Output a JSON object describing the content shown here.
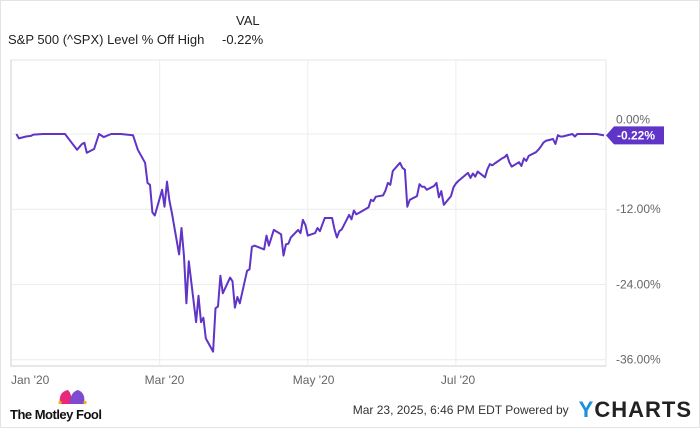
{
  "header": {
    "column_label": "VAL",
    "series_label": "S&P 500 (^SPX) Level % Off High",
    "series_value": "-0.22%"
  },
  "chart_data": {
    "type": "line",
    "title": "",
    "xlabel": "",
    "ylabel": "",
    "x_ticks": [
      {
        "date": "2020-01-01",
        "label": "Jan '20"
      },
      {
        "date": "2020-03-01",
        "label": "Mar '20"
      },
      {
        "date": "2020-05-01",
        "label": "May '20"
      },
      {
        "date": "2020-07-01",
        "label": "Jul '20"
      }
    ],
    "y_ticks": [
      {
        "value": 0,
        "label": "0.00%"
      },
      {
        "value": -12,
        "label": "-12.00%"
      },
      {
        "value": -24,
        "label": "-24.00%"
      },
      {
        "value": -36,
        "label": "-36.00%"
      }
    ],
    "xlim": [
      "2020-01-01",
      "2020-08-31"
    ],
    "ylim": [
      -37,
      11.8
    ],
    "grid": true,
    "line_color": "#5f34c7",
    "last_value_label": "-0.22%",
    "series": [
      {
        "points": [
          [
            "2020-01-02",
            0
          ],
          [
            "2020-01-03",
            -0.7
          ],
          [
            "2020-01-06",
            -0.4
          ],
          [
            "2020-01-08",
            -0.3
          ],
          [
            "2020-01-09",
            -0.1
          ],
          [
            "2020-01-13",
            0
          ],
          [
            "2020-01-17",
            0
          ],
          [
            "2020-01-22",
            0
          ],
          [
            "2020-01-24",
            -1.0
          ],
          [
            "2020-01-27",
            -2.5
          ],
          [
            "2020-01-29",
            -1.6
          ],
          [
            "2020-01-30",
            -1.4
          ],
          [
            "2020-01-31",
            -3.0
          ],
          [
            "2020-02-03",
            -2.4
          ],
          [
            "2020-02-05",
            0
          ],
          [
            "2020-02-07",
            -0.5
          ],
          [
            "2020-02-10",
            0
          ],
          [
            "2020-02-12",
            0
          ],
          [
            "2020-02-14",
            0
          ],
          [
            "2020-02-19",
            -0.2
          ],
          [
            "2020-02-21",
            -2.5
          ],
          [
            "2020-02-24",
            -4.6
          ],
          [
            "2020-02-25",
            -7.8
          ],
          [
            "2020-02-26",
            -8.1
          ],
          [
            "2020-02-27",
            -12.5
          ],
          [
            "2020-02-28",
            -13.0
          ],
          [
            "2020-03-02",
            -8.9
          ],
          [
            "2020-03-03",
            -11.6
          ],
          [
            "2020-03-04",
            -7.6
          ],
          [
            "2020-03-05",
            -10.6
          ],
          [
            "2020-03-06",
            -12.5
          ],
          [
            "2020-03-09",
            -19.2
          ],
          [
            "2020-03-10",
            -15.0
          ],
          [
            "2020-03-11",
            -19.5
          ],
          [
            "2020-03-12",
            -27.0
          ],
          [
            "2020-03-13",
            -20.3
          ],
          [
            "2020-03-16",
            -30.0
          ],
          [
            "2020-03-17",
            -25.8
          ],
          [
            "2020-03-18",
            -30.0
          ],
          [
            "2020-03-19",
            -29.3
          ],
          [
            "2020-03-20",
            -32.6
          ],
          [
            "2020-03-23",
            -34.7
          ],
          [
            "2020-03-24",
            -27.8
          ],
          [
            "2020-03-25",
            -27.5
          ],
          [
            "2020-03-26",
            -22.6
          ],
          [
            "2020-03-27",
            -25.4
          ],
          [
            "2020-03-30",
            -22.9
          ],
          [
            "2020-03-31",
            -23.5
          ],
          [
            "2020-04-01",
            -27.7
          ],
          [
            "2020-04-02",
            -26.0
          ],
          [
            "2020-04-03",
            -27.0
          ],
          [
            "2020-04-06",
            -21.8
          ],
          [
            "2020-04-07",
            -21.6
          ],
          [
            "2020-04-08",
            -18.0
          ],
          [
            "2020-04-09",
            -17.8
          ],
          [
            "2020-04-13",
            -18.4
          ],
          [
            "2020-04-14",
            -16.2
          ],
          [
            "2020-04-15",
            -17.8
          ],
          [
            "2020-04-17",
            -15.3
          ],
          [
            "2020-04-20",
            -16.0
          ],
          [
            "2020-04-21",
            -19.4
          ],
          [
            "2020-04-22",
            -17.6
          ],
          [
            "2020-04-23",
            -17.5
          ],
          [
            "2020-04-24",
            -16.5
          ],
          [
            "2020-04-27",
            -15.3
          ],
          [
            "2020-04-28",
            -15.8
          ],
          [
            "2020-04-29",
            -13.7
          ],
          [
            "2020-04-30",
            -14.5
          ],
          [
            "2020-05-01",
            -16.2
          ],
          [
            "2020-05-04",
            -15.8
          ],
          [
            "2020-05-05",
            -15.0
          ],
          [
            "2020-05-06",
            -15.5
          ],
          [
            "2020-05-07",
            -14.4
          ],
          [
            "2020-05-08",
            -13.4
          ],
          [
            "2020-05-11",
            -13.4
          ],
          [
            "2020-05-12",
            -15.2
          ],
          [
            "2020-05-13",
            -16.5
          ],
          [
            "2020-05-14",
            -15.5
          ],
          [
            "2020-05-15",
            -15.2
          ],
          [
            "2020-05-18",
            -12.9
          ],
          [
            "2020-05-19",
            -13.6
          ],
          [
            "2020-05-20",
            -12.2
          ],
          [
            "2020-05-21",
            -12.8
          ],
          [
            "2020-05-22",
            -12.6
          ],
          [
            "2020-05-26",
            -11.7
          ],
          [
            "2020-05-27",
            -10.5
          ],
          [
            "2020-05-28",
            -10.7
          ],
          [
            "2020-05-29",
            -10.0
          ],
          [
            "2020-06-01",
            -9.8
          ],
          [
            "2020-06-02",
            -9.0
          ],
          [
            "2020-06-03",
            -7.8
          ],
          [
            "2020-06-04",
            -8.1
          ],
          [
            "2020-06-05",
            -5.9
          ],
          [
            "2020-06-08",
            -4.6
          ],
          [
            "2020-06-09",
            -5.4
          ],
          [
            "2020-06-10",
            -5.7
          ],
          [
            "2020-06-11",
            -11.6
          ],
          [
            "2020-06-12",
            -10.5
          ],
          [
            "2020-06-15",
            -9.9
          ],
          [
            "2020-06-16",
            -8.0
          ],
          [
            "2020-06-17",
            -8.4
          ],
          [
            "2020-06-18",
            -8.4
          ],
          [
            "2020-06-19",
            -8.9
          ],
          [
            "2020-06-22",
            -8.3
          ],
          [
            "2020-06-23",
            -7.8
          ],
          [
            "2020-06-24",
            -10.1
          ],
          [
            "2020-06-25",
            -9.1
          ],
          [
            "2020-06-26",
            -11.3
          ],
          [
            "2020-06-29",
            -9.9
          ],
          [
            "2020-06-30",
            -8.5
          ],
          [
            "2020-07-01",
            -7.9
          ],
          [
            "2020-07-02",
            -7.5
          ],
          [
            "2020-07-06",
            -6.2
          ],
          [
            "2020-07-07",
            -7.0
          ],
          [
            "2020-07-08",
            -6.3
          ],
          [
            "2020-07-09",
            -6.8
          ],
          [
            "2020-07-10",
            -6.0
          ],
          [
            "2020-07-13",
            -6.9
          ],
          [
            "2020-07-14",
            -5.6
          ],
          [
            "2020-07-15",
            -4.8
          ],
          [
            "2020-07-16",
            -5.0
          ],
          [
            "2020-07-17",
            -4.7
          ],
          [
            "2020-07-20",
            -3.9
          ],
          [
            "2020-07-21",
            -3.7
          ],
          [
            "2020-07-22",
            -3.3
          ],
          [
            "2020-07-23",
            -4.5
          ],
          [
            "2020-07-24",
            -5.2
          ],
          [
            "2020-07-27",
            -4.5
          ],
          [
            "2020-07-28",
            -5.1
          ],
          [
            "2020-07-29",
            -3.9
          ],
          [
            "2020-07-30",
            -4.3
          ],
          [
            "2020-07-31",
            -3.5
          ],
          [
            "2020-08-03",
            -2.9
          ],
          [
            "2020-08-04",
            -2.5
          ],
          [
            "2020-08-05",
            -2.0
          ],
          [
            "2020-08-06",
            -1.4
          ],
          [
            "2020-08-07",
            -1.1
          ],
          [
            "2020-08-10",
            -0.8
          ],
          [
            "2020-08-11",
            -1.6
          ],
          [
            "2020-08-12",
            -0.2
          ],
          [
            "2020-08-13",
            -0.4
          ],
          [
            "2020-08-14",
            -0.4
          ],
          [
            "2020-08-17",
            -0.1
          ],
          [
            "2020-08-18",
            0
          ],
          [
            "2020-08-19",
            -0.4
          ],
          [
            "2020-08-20",
            0
          ],
          [
            "2020-08-21",
            0
          ],
          [
            "2020-08-24",
            0
          ],
          [
            "2020-08-26",
            0
          ],
          [
            "2020-08-28",
            0
          ],
          [
            "2020-08-31",
            -0.22
          ]
        ]
      }
    ]
  },
  "footer": {
    "brand": "The Motley Fool",
    "timestamp": "Mar 23, 2025, 6:46 PM EDT",
    "powered_by": "Powered by",
    "ycharts_logo": "YCHARTS"
  }
}
